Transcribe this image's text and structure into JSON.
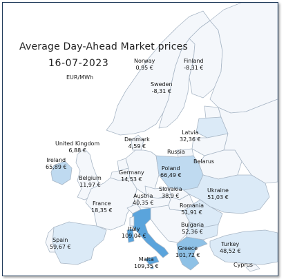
{
  "title": "Average Day-Ahead Market prices",
  "date": "16-07-2023",
  "unit": "EUR/MWh",
  "colors": {
    "sea": "#ffffff",
    "land": "#f4f7fb",
    "border": "#a9b7c6",
    "light": "#dbeaf7",
    "mid": "#bfdaf0",
    "high": "#8ec1e6",
    "highest": "#5aa4dc"
  },
  "countries": [
    {
      "name": "Norway",
      "price": "0,95 €"
    },
    {
      "name": "Finland",
      "price": "-8,31 €"
    },
    {
      "name": "Sweden",
      "price": "-8,31 €"
    },
    {
      "name": "Latvia",
      "price": "32,36 €"
    },
    {
      "name": "Russia",
      "price": ""
    },
    {
      "name": "Belarus",
      "price": ""
    },
    {
      "name": "Denmark",
      "price": "4,59 €"
    },
    {
      "name": "United Kingdom",
      "price": "6,88 €"
    },
    {
      "name": "Ireland",
      "price": "65,89 €"
    },
    {
      "name": "Poland",
      "price": "66,49 €"
    },
    {
      "name": "Germany",
      "price": "14,53 €"
    },
    {
      "name": "Belgium",
      "price": "11,97 €"
    },
    {
      "name": "Ukraine",
      "price": "51,03 €"
    },
    {
      "name": "Slovakia",
      "price": "38,9 €"
    },
    {
      "name": "Austria",
      "price": "40,35 €"
    },
    {
      "name": "France",
      "price": "18,35 €"
    },
    {
      "name": "Romania",
      "price": "51,91 €"
    },
    {
      "name": "Bulgaria",
      "price": "52,36 €"
    },
    {
      "name": "Spain",
      "price": "59,67 €"
    },
    {
      "name": "Italy",
      "price": "109,04 €"
    },
    {
      "name": "Greece",
      "price": "101,72 €"
    },
    {
      "name": "Turkey",
      "price": "48,52 €"
    },
    {
      "name": "Malta",
      "price": "109,35 €"
    },
    {
      "name": "Cyprus",
      "price": ""
    }
  ]
}
